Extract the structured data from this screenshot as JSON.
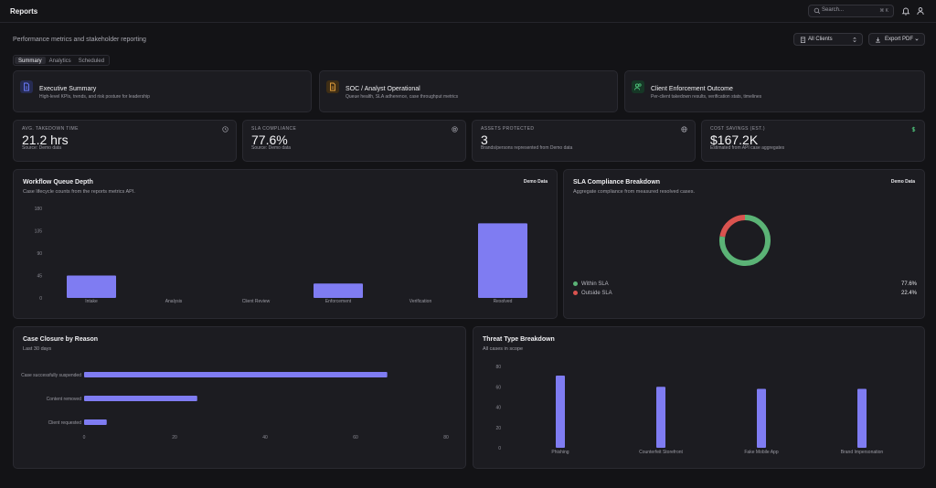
{
  "header": {
    "title": "Reports",
    "search_placeholder": "Search...",
    "search_shortcut": "⌘ K"
  },
  "page": {
    "subtitle": "Performance metrics and stakeholder reporting",
    "client_filter": "All Clients",
    "export_label": "Export PDF"
  },
  "tabs": [
    "Summary",
    "Analytics",
    "Scheduled"
  ],
  "report_types": [
    {
      "title": "Executive Summary",
      "desc": "High-level KPIs, trends, and risk posture for leadership",
      "color": "#6d7dff",
      "bg": "#262b52",
      "icon": "document-icon"
    },
    {
      "title": "SOC / Analyst Operational",
      "desc": "Queue health, SLA adherence, case throughput metrics",
      "color": "#e7a23c",
      "bg": "#3f2e15",
      "icon": "document-icon"
    },
    {
      "title": "Client Enforcement Outcome",
      "desc": "Per-client takedown results, verification stats, timelines",
      "color": "#4fc47c",
      "bg": "#163726",
      "icon": "users-icon"
    }
  ],
  "kpis": [
    {
      "label": "AVG. TAKEDOWN TIME",
      "value": "21.2 hrs",
      "note": "Source: Demo data",
      "icon": "clock-icon"
    },
    {
      "label": "SLA COMPLIANCE",
      "value": "77.6%",
      "note": "Source: Demo data",
      "icon": "target-icon"
    },
    {
      "label": "ASSETS PROTECTED",
      "value": "3",
      "note": "Brands/persons represented from Demo data",
      "icon": "globe-icon"
    },
    {
      "label": "COST SAVINGS (EST.)",
      "value": "$167.2K",
      "note": "Estimated from API case aggregates",
      "icon": "dollar-icon"
    }
  ],
  "queue_panel": {
    "title": "Workflow Queue Depth",
    "subtitle": "Case lifecycle counts from the reports metrics API.",
    "badge": "Demo Data"
  },
  "sla_panel": {
    "title": "SLA Compliance Breakdown",
    "subtitle": "Aggregate compliance from measured resolved cases.",
    "badge": "Demo Data",
    "legend": [
      {
        "label": "Within SLA",
        "value": "77.6%",
        "color": "#5bb376"
      },
      {
        "label": "Outside SLA",
        "value": "22.4%",
        "color": "#d9534f"
      }
    ]
  },
  "closure_panel": {
    "title": "Case Closure by Reason",
    "subtitle": "Last 30 days"
  },
  "threat_panel": {
    "title": "Threat Type Breakdown",
    "subtitle": "All cases in scope"
  },
  "colors": {
    "accent": "#7f7cf2"
  },
  "chart_data": [
    {
      "id": "queue",
      "type": "bar",
      "categories": [
        "Intake",
        "Analysis",
        "Client Review",
        "Enforcement",
        "Verification",
        "Resolved"
      ],
      "values": [
        45,
        0,
        0,
        29,
        0,
        150
      ],
      "yticks": [
        0,
        45,
        90,
        135,
        180
      ],
      "ylim": [
        0,
        180
      ]
    },
    {
      "id": "sla",
      "type": "pie",
      "categories": [
        "Within SLA",
        "Outside SLA"
      ],
      "values": [
        77.6,
        22.4
      ]
    },
    {
      "id": "closure",
      "type": "bar",
      "orientation": "horizontal",
      "categories": [
        "Case successfully suspended",
        "Content removed",
        "Client requested"
      ],
      "values": [
        67,
        25,
        5
      ],
      "xticks": [
        0,
        20,
        40,
        60,
        80
      ],
      "xlim": [
        0,
        80
      ]
    },
    {
      "id": "threat",
      "type": "bar",
      "categories": [
        "Phishing",
        "Counterfeit Storefront",
        "Fake Mobile App",
        "Brand Impersonation"
      ],
      "values": [
        71,
        60,
        58,
        58
      ],
      "yticks": [
        0,
        20,
        40,
        60,
        80
      ],
      "ylim": [
        0,
        80
      ]
    }
  ]
}
